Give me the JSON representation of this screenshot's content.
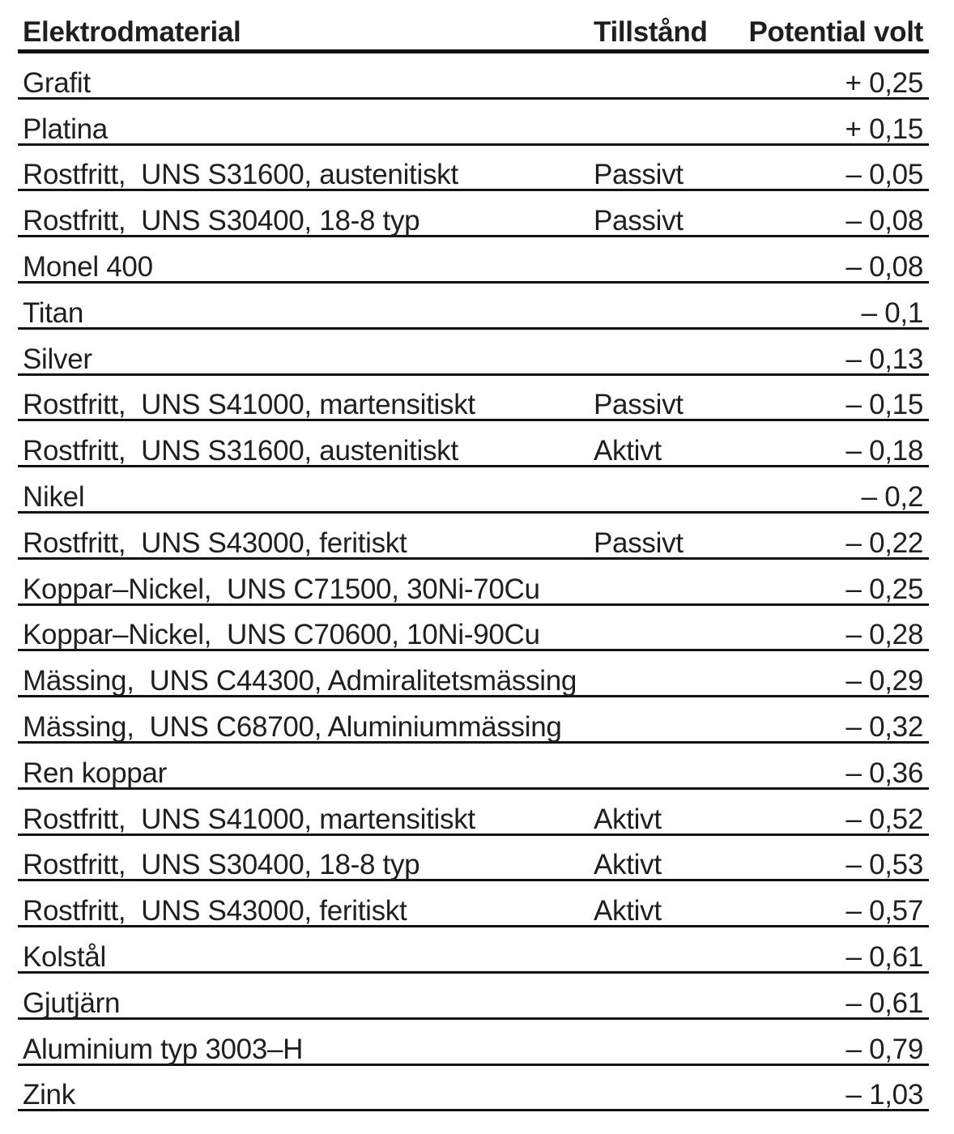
{
  "colors": {
    "background": "#ffffff",
    "text": "#211e1f",
    "rule": "#121212"
  },
  "table": {
    "headers": {
      "material": "Elektrodmaterial",
      "state": "Tillstånd",
      "potential": "Potential volt"
    },
    "rows": [
      {
        "material": "Grafit",
        "state": "",
        "potential": "+ 0,25"
      },
      {
        "material": "Platina",
        "state": "",
        "potential": "+ 0,15"
      },
      {
        "material": "Rostfritt,  UNS S31600, austenitiskt",
        "state": "Passivt",
        "potential": "– 0,05"
      },
      {
        "material": "Rostfritt,  UNS S30400, 18-8 typ",
        "state": "Passivt",
        "potential": "– 0,08"
      },
      {
        "material": "Monel 400",
        "state": "",
        "potential": "– 0,08"
      },
      {
        "material": "Titan",
        "state": "",
        "potential": "– 0,1"
      },
      {
        "material": "Silver",
        "state": "",
        "potential": "– 0,13"
      },
      {
        "material": "Rostfritt,  UNS S41000, martensitiskt",
        "state": "Passivt",
        "potential": "– 0,15"
      },
      {
        "material": "Rostfritt,  UNS S31600, austenitiskt",
        "state": "Aktivt",
        "potential": "– 0,18"
      },
      {
        "material": "Nikel",
        "state": "",
        "potential": "– 0,2"
      },
      {
        "material": "Rostfritt,  UNS S43000, feritiskt",
        "state": "Passivt",
        "potential": "– 0,22"
      },
      {
        "material": "Koppar–Nickel,  UNS C71500, 30Ni-70Cu",
        "state": "",
        "potential": "– 0,25"
      },
      {
        "material": "Koppar–Nickel,  UNS C70600, 10Ni-90Cu",
        "state": "",
        "potential": "– 0,28"
      },
      {
        "material": "Mässing,  UNS C44300, Admiralitetsmässing",
        "state": "",
        "potential": "– 0,29"
      },
      {
        "material": "Mässing,  UNS C68700, Aluminiummässing",
        "state": "",
        "potential": "– 0,32"
      },
      {
        "material": "Ren koppar",
        "state": "",
        "potential": "– 0,36"
      },
      {
        "material": "Rostfritt,  UNS S41000, martensitiskt",
        "state": "Aktivt",
        "potential": "– 0,52"
      },
      {
        "material": "Rostfritt,  UNS S30400, 18-8 typ",
        "state": "Aktivt",
        "potential": "– 0,53"
      },
      {
        "material": "Rostfritt,  UNS S43000, feritiskt",
        "state": "Aktivt",
        "potential": "– 0,57"
      },
      {
        "material": "Kolstål",
        "state": "",
        "potential": "– 0,61"
      },
      {
        "material": "Gjutjärn",
        "state": "",
        "potential": "– 0,61"
      },
      {
        "material": "Aluminium typ 3003–H",
        "state": "",
        "potential": "– 0,79"
      },
      {
        "material": "Zink",
        "state": "",
        "potential": "– 1,03"
      }
    ]
  }
}
